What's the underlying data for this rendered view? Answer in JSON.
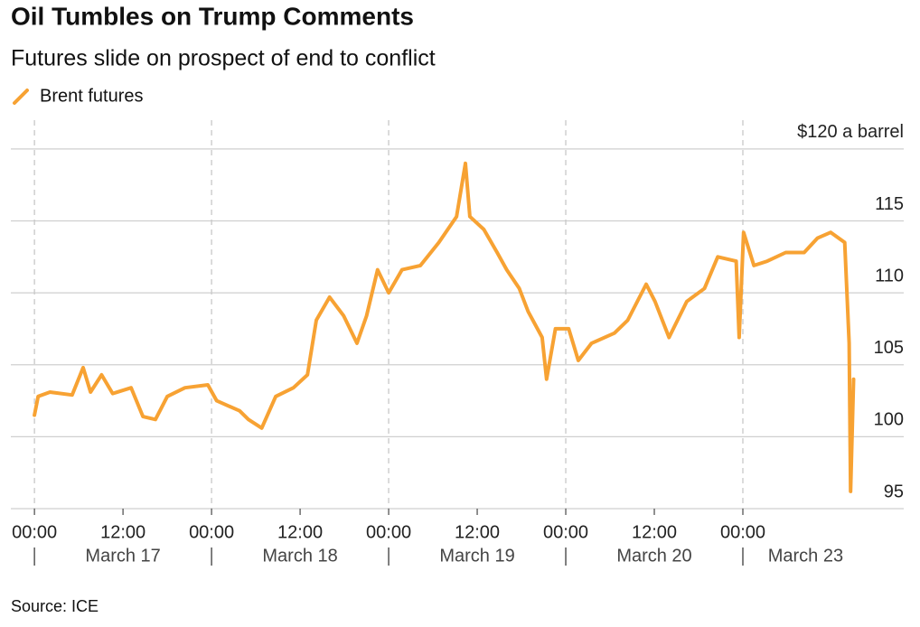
{
  "chart_data": {
    "type": "line",
    "title": "Oil Tumbles on Trump Comments",
    "subtitle": "Futures slide on prospect of end to conflict",
    "source": "Source: ICE",
    "series": [
      {
        "name": "Brent futures",
        "color": "#f7a233",
        "x": [
          0,
          0.5,
          2.1,
          5.1,
          6.6,
          7.6,
          9.1,
          10.6,
          13.1,
          14.7,
          16.4,
          18,
          20.4,
          23.5,
          24.7,
          27.8,
          29,
          30.8,
          32.7,
          35.1,
          37,
          38.2,
          40,
          41.9,
          43.7,
          45,
          46.5,
          48,
          49.8,
          52.3,
          54.8,
          57.2,
          58.4,
          59,
          60.9,
          62.7,
          64,
          65.7,
          66.9,
          68.8,
          69.4,
          70.6,
          72.4,
          73.7,
          75.5,
          78.6,
          80.4,
          82.9,
          84.1,
          86,
          88.4,
          90.8,
          92.6,
          95.1,
          95.5,
          96.1,
          97.5,
          99.3,
          101.8,
          104.3,
          106.1,
          107.9,
          109.8,
          110.4,
          110.6,
          111
        ],
        "values": [
          101.5,
          102.8,
          103.1,
          102.9,
          104.8,
          103.1,
          104.3,
          103,
          103.4,
          101.4,
          101.2,
          102.8,
          103.4,
          103.6,
          102.5,
          101.8,
          101.2,
          100.6,
          102.8,
          103.4,
          104.3,
          108.1,
          109.7,
          108.4,
          106.5,
          108.4,
          111.6,
          110,
          111.6,
          111.9,
          113.5,
          115.3,
          119,
          115.3,
          114.4,
          112.8,
          111.6,
          110.3,
          108.7,
          106.9,
          104,
          107.5,
          107.5,
          105.3,
          106.5,
          107.2,
          108.1,
          110.6,
          109.4,
          106.9,
          109.4,
          110.3,
          112.5,
          112.2,
          106.9,
          114.2,
          111.9,
          112.2,
          112.8,
          112.8,
          113.8,
          114.2,
          113.5,
          106.5,
          96.2,
          104
        ]
      }
    ],
    "xlim": [
      -3.2,
      117.8
    ],
    "xticks": [
      {
        "value": 0,
        "label": "00:00"
      },
      {
        "value": 12,
        "label": "12:00"
      },
      {
        "value": 24,
        "label": "00:00"
      },
      {
        "value": 36,
        "label": "12:00"
      },
      {
        "value": 48,
        "label": "00:00"
      },
      {
        "value": 60,
        "label": "12:00"
      },
      {
        "value": 72,
        "label": "00:00"
      },
      {
        "value": 84,
        "label": "12:00"
      },
      {
        "value": 96,
        "label": "00:00"
      }
    ],
    "x_groups": [
      {
        "label": "March 17",
        "start": 0,
        "end": 24
      },
      {
        "label": "March 18",
        "start": 24,
        "end": 48
      },
      {
        "label": "March 19",
        "start": 48,
        "end": 72
      },
      {
        "label": "March 20",
        "start": 72,
        "end": 96
      },
      {
        "label": "March 23",
        "start": 96,
        "end": 113
      }
    ],
    "ylim": [
      95,
      122
    ],
    "yticks": [
      95,
      100,
      105,
      110,
      115,
      {
        "value": 120,
        "label": "$120 a barrel"
      }
    ],
    "grid": true,
    "legend": "top-left"
  }
}
